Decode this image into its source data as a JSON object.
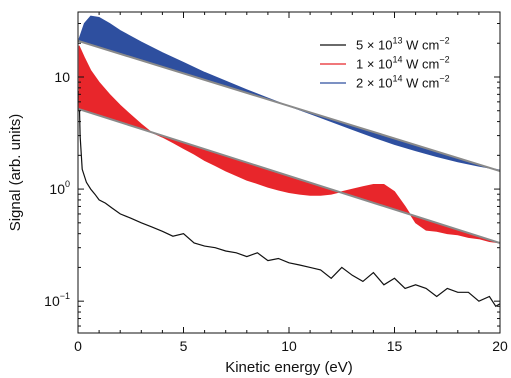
{
  "chart_data": {
    "type": "line",
    "xlabel": "Kinetic energy (eV)",
    "ylabel": "Signal (arb. units)",
    "x_scale": "linear",
    "y_scale": "log",
    "xlim": [
      0,
      20
    ],
    "ylim": [
      0.052,
      38
    ],
    "x_ticks": [
      0,
      5,
      10,
      15,
      20
    ],
    "x_tick_labels": [
      "0",
      "5",
      "10",
      "15",
      "20"
    ],
    "y_ticks": [
      0.1,
      1,
      10
    ],
    "y_tick_labels": [
      {
        "base": "10",
        "exp": "−1"
      },
      {
        "base": "10",
        "exp": "0"
      },
      {
        "base": "10",
        "exp": ""
      }
    ],
    "grid": false,
    "legend_position": "top-right",
    "legend": [
      {
        "prefix": "5 × 10",
        "exp": "13",
        "unit": " W cm",
        "unit_exp": "−2",
        "color": "#111111"
      },
      {
        "prefix": "1 × 10",
        "exp": "14",
        "unit": " W cm",
        "unit_exp": "−2",
        "color": "#e8262b"
      },
      {
        "prefix": "2 × 10",
        "exp": "14",
        "unit": " W cm",
        "unit_exp": "−2",
        "color": "#2e4f9f"
      }
    ],
    "series": [
      {
        "intensity_index": 0,
        "color": "#111111",
        "style": "line",
        "x": [
          0.05,
          0.1,
          0.2,
          0.4,
          0.6,
          0.8,
          1.0,
          1.3,
          1.6,
          2.0,
          2.5,
          3.0,
          3.5,
          4.0,
          4.5,
          5.0,
          5.5,
          6.0,
          6.5,
          7.0,
          7.5,
          8.0,
          8.5,
          9.0,
          9.5,
          10.0,
          10.5,
          11.0,
          11.5,
          12.0,
          12.5,
          13.0,
          13.5,
          14.0,
          14.5,
          15.0,
          15.5,
          16.0,
          16.5,
          17.0,
          17.5,
          18.0,
          18.5,
          19.0,
          19.5,
          19.8,
          20.0
        ],
        "y": [
          7.5,
          3.0,
          1.5,
          1.15,
          1.0,
          0.9,
          0.8,
          0.75,
          0.68,
          0.6,
          0.55,
          0.5,
          0.46,
          0.42,
          0.38,
          0.4,
          0.33,
          0.31,
          0.3,
          0.28,
          0.27,
          0.25,
          0.27,
          0.23,
          0.24,
          0.22,
          0.21,
          0.2,
          0.19,
          0.16,
          0.2,
          0.17,
          0.15,
          0.18,
          0.14,
          0.16,
          0.13,
          0.14,
          0.13,
          0.11,
          0.13,
          0.12,
          0.12,
          0.1,
          0.11,
          0.09,
          0.095
        ]
      },
      {
        "intensity_index": 1,
        "color": "#e8262b",
        "style": "filled_above_baseline",
        "baseline": {
          "x": [
            0,
            20
          ],
          "y": [
            5.2,
            0.33
          ]
        },
        "x": [
          0.05,
          0.3,
          0.6,
          1.0,
          1.5,
          2.0,
          2.5,
          3.0,
          3.5,
          4.0,
          4.5,
          5.0,
          5.5,
          6.0,
          6.5,
          7.0,
          7.5,
          8.0,
          8.5,
          9.0,
          9.5,
          10.0,
          10.5,
          11.0,
          11.5,
          12.0,
          12.5,
          13.0,
          13.5,
          14.0,
          14.5,
          15.0,
          15.5,
          16.0,
          16.5,
          17.0,
          17.5,
          18.0,
          18.5,
          19.0,
          19.5,
          20.0
        ],
        "y": [
          19.0,
          15.0,
          11.5,
          9.0,
          7.0,
          5.6,
          4.6,
          3.8,
          3.2,
          2.9,
          2.6,
          2.3,
          2.05,
          1.8,
          1.62,
          1.45,
          1.32,
          1.2,
          1.12,
          1.04,
          0.98,
          0.93,
          0.9,
          0.88,
          0.88,
          0.9,
          0.95,
          1.0,
          1.05,
          1.1,
          1.1,
          0.95,
          0.7,
          0.5,
          0.43,
          0.42,
          0.4,
          0.39,
          0.37,
          0.36,
          0.34,
          0.33
        ]
      },
      {
        "intensity_index": 2,
        "color": "#2e4f9f",
        "style": "filled_above_baseline",
        "baseline": {
          "x": [
            0,
            20
          ],
          "y": [
            21.0,
            1.45
          ]
        },
        "x": [
          0.05,
          0.3,
          0.6,
          1.0,
          1.5,
          2.0,
          3.0,
          4.0,
          5.0,
          6.0,
          7.0,
          8.0,
          9.0,
          10.0,
          11.0,
          12.0,
          13.0,
          14.0,
          15.0,
          16.0,
          17.0,
          18.0,
          19.0,
          20.0
        ],
        "y": [
          22.0,
          30.0,
          35.0,
          34.0,
          30.0,
          26.0,
          20.5,
          16.5,
          13.5,
          11.0,
          9.2,
          7.7,
          6.5,
          5.5,
          4.7,
          4.0,
          3.4,
          2.9,
          2.5,
          2.2,
          1.95,
          1.75,
          1.6,
          1.48
        ]
      }
    ]
  }
}
